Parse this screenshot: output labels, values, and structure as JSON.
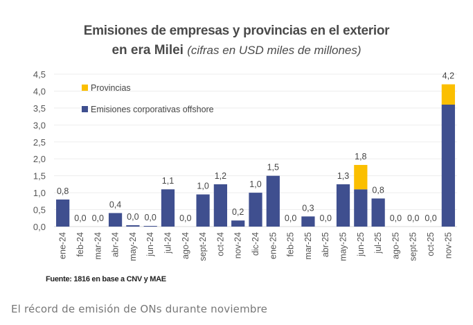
{
  "title": {
    "line1": "Emisiones de empresas y provincias en el exterior",
    "line2_bold": "en era Milei",
    "line2_sub": "(cifras en USD miles de millones)"
  },
  "source": "Fuente: 1816 en base a CNV y MAE",
  "caption": "El récord de emisión de ONs durante noviembre",
  "colors": {
    "corporativas": "#3f4f8f",
    "provincias": "#fbbf00",
    "grid": "#ededed",
    "axis_text": "#555555",
    "label_text": "#444444"
  },
  "chart_data": {
    "type": "bar",
    "stacked": true,
    "title": "Emisiones de empresas y provincias en el exterior en era Milei (cifras en USD miles de millones)",
    "xlabel": "",
    "ylabel": "",
    "ylim": [
      0,
      4.5
    ],
    "yticks": [
      "0,0",
      "0,5",
      "1,0",
      "1,5",
      "2,0",
      "2,5",
      "3,0",
      "3,5",
      "4,0",
      "4,5"
    ],
    "ytick_values": [
      0,
      0.5,
      1.0,
      1.5,
      2.0,
      2.5,
      3.0,
      3.5,
      4.0,
      4.5
    ],
    "grid": true,
    "legend_position": "top-left",
    "categories": [
      "ene-24",
      "feb-24",
      "mar-24",
      "abr-24",
      "may-24",
      "jun-24",
      "jul-24",
      "ago-24",
      "sept-24",
      "oct-24",
      "nov-24",
      "dic-24",
      "ene-25",
      "feb-25",
      "mar-25",
      "abr-25",
      "may-25",
      "jun-25",
      "jul-25",
      "ago-25",
      "sept-25",
      "oct-25",
      "nov-25"
    ],
    "series": [
      {
        "name": "Emisiones corporativas offshore",
        "color": "#3f4f8f",
        "values": [
          0.8,
          0.0,
          0.0,
          0.4,
          0.04,
          0.02,
          1.1,
          0.0,
          0.95,
          1.25,
          0.18,
          1.0,
          1.5,
          0.0,
          0.3,
          0.0,
          1.25,
          1.1,
          0.83,
          0.0,
          0.0,
          0.0,
          3.6
        ]
      },
      {
        "name": "Provincias",
        "color": "#fbbf00",
        "values": [
          0,
          0,
          0,
          0,
          0,
          0,
          0,
          0,
          0,
          0,
          0,
          0,
          0,
          0,
          0,
          0,
          0,
          0.72,
          0,
          0,
          0,
          0,
          0.6
        ]
      }
    ],
    "legend": [
      "Provincias",
      "Emisiones corporativas offshore"
    ],
    "data_labels": [
      "0,8",
      "0,0",
      "0,0",
      "0,4",
      "0,0",
      "0,0",
      "1,1",
      "0,0",
      "1,0",
      "1,2",
      "0,2",
      "1,0",
      "1,5",
      "0,0",
      "0,3",
      "0,0",
      "1,3",
      "1,8",
      "0,8",
      "0,0",
      "0,0",
      "0,0",
      "4,2"
    ]
  }
}
